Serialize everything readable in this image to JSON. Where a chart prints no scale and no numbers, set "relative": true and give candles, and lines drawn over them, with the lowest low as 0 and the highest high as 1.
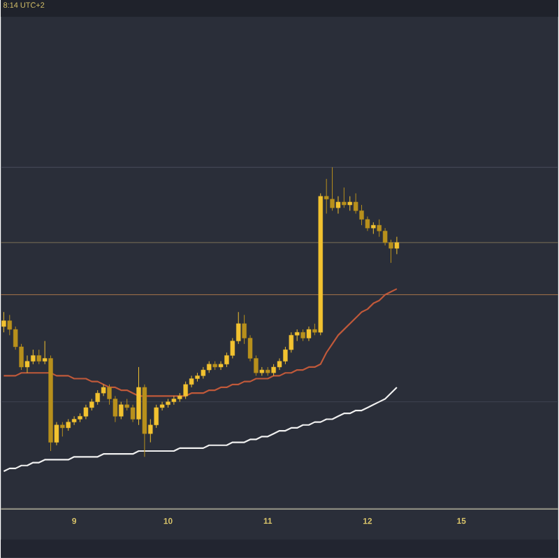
{
  "chart_data": {
    "type": "candlestick",
    "relative": true,
    "annotations": [
      "8:14 UTC+2"
    ],
    "categories": [
      null,
      null,
      null,
      null,
      null,
      null,
      null,
      null,
      null,
      null,
      null,
      null,
      "9",
      null,
      null,
      null,
      null,
      null,
      null,
      null,
      null,
      null,
      null,
      null,
      null,
      null,
      null,
      null,
      "10",
      null,
      null,
      null,
      null,
      null,
      null,
      null,
      null,
      null,
      null,
      null,
      null,
      null,
      null,
      null,
      null,
      "11",
      null,
      null,
      null,
      null,
      null,
      null,
      null,
      null,
      null,
      null,
      null,
      null,
      null,
      null,
      null,
      null,
      "12",
      null,
      null,
      null,
      null,
      null,
      null,
      null,
      null,
      null,
      null,
      null,
      null,
      null,
      null,
      null,
      "15",
      null,
      null,
      null,
      null,
      null,
      null,
      null,
      null,
      null,
      null,
      null,
      null,
      null,
      null,
      null,
      null
    ],
    "colors": [
      "#f2c230",
      "#b8901c",
      "#b8901c",
      "#b8901c",
      "#f2c230",
      "#f2c230",
      "#b8901c",
      "#f2c230",
      "#b8901c",
      "#f2c230",
      "#b8901c",
      "#f2c230",
      "#f2c230",
      "#f2c230",
      "#f2c230",
      "#f2c230",
      "#f2c230",
      "#f2c230",
      "#b8901c",
      "#b8901c",
      "#f2c230",
      "#b8901c",
      "#b8901c",
      "#f2c230",
      "#b8901c",
      "#f2c230",
      "#f2c230",
      "#f2c230",
      "#f2c230",
      "#f2c230",
      "#f2c230",
      "#f2c230",
      "#f2c230",
      "#f2c230",
      "#f2c230",
      "#f2c230",
      "#b8901c",
      "#f2c230",
      "#f2c230",
      "#f2c230",
      "#f2c230",
      "#b8901c",
      "#b8901c",
      "#b8901c",
      "#f2c230",
      "#b8901c",
      "#f2c230",
      "#f2c230",
      "#f2c230",
      "#f2c230",
      "#f2c230",
      "#b8901c",
      "#f2c230",
      "#b8901c",
      "#f2c230",
      "#b8901c",
      "#b8901c",
      "#f2c230",
      "#b8901c",
      "#f2c230",
      "#b8901c",
      "#b8901c",
      "#b8901c",
      "#f2c230",
      "#b8901c",
      "#b8901c",
      "#b8901c",
      "#f2c230",
      null,
      null,
      null,
      null,
      null,
      null,
      null,
      null,
      null,
      null,
      null,
      null,
      null,
      null,
      null,
      null,
      null,
      null,
      null,
      null,
      null,
      null,
      null,
      null,
      null,
      null,
      null
    ],
    "ohlc": [
      [
        0.45,
        0.5,
        0.43,
        0.47
      ],
      [
        0.47,
        0.49,
        0.42,
        0.44
      ],
      [
        0.44,
        0.45,
        0.37,
        0.38
      ],
      [
        0.38,
        0.39,
        0.3,
        0.31
      ],
      [
        0.31,
        0.35,
        0.29,
        0.33
      ],
      [
        0.33,
        0.37,
        0.32,
        0.35
      ],
      [
        0.35,
        0.37,
        0.32,
        0.33
      ],
      [
        0.33,
        0.4,
        0.32,
        0.34
      ],
      [
        0.34,
        0.35,
        0.02,
        0.05
      ],
      [
        0.05,
        0.12,
        0.04,
        0.11
      ],
      [
        0.11,
        0.12,
        0.07,
        0.1
      ],
      [
        0.1,
        0.13,
        0.09,
        0.12
      ],
      [
        0.12,
        0.14,
        0.11,
        0.13
      ],
      [
        0.13,
        0.15,
        0.12,
        0.14
      ],
      [
        0.14,
        0.18,
        0.13,
        0.17
      ],
      [
        0.17,
        0.2,
        0.16,
        0.19
      ],
      [
        0.19,
        0.23,
        0.18,
        0.22
      ],
      [
        0.22,
        0.25,
        0.21,
        0.24
      ],
      [
        0.24,
        0.25,
        0.18,
        0.2
      ],
      [
        0.2,
        0.21,
        0.12,
        0.14
      ],
      [
        0.14,
        0.19,
        0.13,
        0.18
      ],
      [
        0.18,
        0.2,
        0.16,
        0.17
      ],
      [
        0.17,
        0.18,
        0.12,
        0.13
      ],
      [
        0.13,
        0.31,
        0.11,
        0.24
      ],
      [
        0.24,
        0.25,
        0.0,
        0.08
      ],
      [
        0.08,
        0.13,
        0.05,
        0.11
      ],
      [
        0.11,
        0.18,
        0.1,
        0.17
      ],
      [
        0.17,
        0.19,
        0.16,
        0.18
      ],
      [
        0.18,
        0.2,
        0.17,
        0.19
      ],
      [
        0.19,
        0.21,
        0.18,
        0.2
      ],
      [
        0.2,
        0.22,
        0.19,
        0.21
      ],
      [
        0.21,
        0.26,
        0.2,
        0.25
      ],
      [
        0.25,
        0.28,
        0.24,
        0.27
      ],
      [
        0.27,
        0.29,
        0.26,
        0.28
      ],
      [
        0.28,
        0.31,
        0.27,
        0.3
      ],
      [
        0.3,
        0.33,
        0.29,
        0.32
      ],
      [
        0.32,
        0.33,
        0.3,
        0.31
      ],
      [
        0.31,
        0.33,
        0.3,
        0.32
      ],
      [
        0.32,
        0.36,
        0.31,
        0.35
      ],
      [
        0.35,
        0.41,
        0.34,
        0.4
      ],
      [
        0.4,
        0.5,
        0.39,
        0.46
      ],
      [
        0.46,
        0.49,
        0.39,
        0.41
      ],
      [
        0.41,
        0.42,
        0.33,
        0.34
      ],
      [
        0.34,
        0.35,
        0.28,
        0.29
      ],
      [
        0.29,
        0.31,
        0.28,
        0.3
      ],
      [
        0.3,
        0.31,
        0.28,
        0.29
      ],
      [
        0.29,
        0.32,
        0.28,
        0.31
      ],
      [
        0.31,
        0.34,
        0.3,
        0.33
      ],
      [
        0.33,
        0.38,
        0.32,
        0.37
      ],
      [
        0.37,
        0.43,
        0.36,
        0.42
      ],
      [
        0.42,
        0.44,
        0.4,
        0.43
      ],
      [
        0.43,
        0.44,
        0.4,
        0.41
      ],
      [
        0.41,
        0.45,
        0.4,
        0.44
      ],
      [
        0.44,
        0.46,
        0.42,
        0.43
      ],
      [
        0.43,
        0.91,
        0.42,
        0.9
      ],
      [
        0.9,
        0.96,
        0.84,
        0.89
      ],
      [
        0.89,
        1.0,
        0.85,
        0.86
      ],
      [
        0.86,
        0.9,
        0.84,
        0.88
      ],
      [
        0.88,
        0.93,
        0.86,
        0.87
      ],
      [
        0.87,
        0.9,
        0.85,
        0.88
      ],
      [
        0.88,
        0.91,
        0.84,
        0.85
      ],
      [
        0.85,
        0.87,
        0.8,
        0.82
      ],
      [
        0.82,
        0.83,
        0.78,
        0.79
      ],
      [
        0.79,
        0.81,
        0.77,
        0.8
      ],
      [
        0.8,
        0.82,
        0.76,
        0.78
      ],
      [
        0.78,
        0.79,
        0.73,
        0.74
      ],
      [
        0.74,
        0.75,
        0.67,
        0.72
      ],
      [
        0.72,
        0.76,
        0.7,
        0.74
      ],
      null,
      null,
      null,
      null,
      null,
      null,
      null,
      null,
      null,
      null,
      null,
      null,
      null,
      null,
      null,
      null,
      null,
      null,
      null,
      null,
      null,
      null,
      null,
      null,
      null,
      null,
      null
    ],
    "series": [
      {
        "type": "line",
        "color": "#c0593a",
        "values": [
          0.28,
          0.28,
          0.28,
          0.29,
          0.29,
          0.29,
          0.29,
          0.29,
          0.29,
          0.28,
          0.28,
          0.28,
          0.27,
          0.27,
          0.27,
          0.26,
          0.26,
          0.25,
          0.24,
          0.24,
          0.23,
          0.23,
          0.22,
          0.21,
          0.21,
          0.21,
          0.21,
          0.21,
          0.21,
          0.21,
          0.21,
          0.21,
          0.22,
          0.22,
          0.22,
          0.23,
          0.23,
          0.24,
          0.24,
          0.25,
          0.25,
          0.26,
          0.26,
          0.27,
          0.27,
          0.27,
          0.28,
          0.28,
          0.29,
          0.29,
          0.3,
          0.3,
          0.31,
          0.31,
          0.32,
          0.36,
          0.39,
          0.42,
          0.44,
          0.46,
          0.48,
          0.5,
          0.51,
          0.53,
          0.54,
          0.56,
          0.57,
          0.58,
          null,
          null,
          null,
          null,
          null,
          null,
          null,
          null,
          null,
          null,
          null,
          null,
          null,
          null,
          null,
          null,
          null,
          null,
          null,
          null,
          null,
          null,
          null,
          null,
          null,
          null,
          null
        ]
      },
      {
        "type": "line",
        "color": "#f0f0f0",
        "values": [
          -0.05,
          -0.04,
          -0.04,
          -0.03,
          -0.03,
          -0.02,
          -0.02,
          -0.01,
          -0.01,
          -0.01,
          -0.01,
          -0.01,
          0.0,
          0.0,
          0.0,
          0.0,
          0.0,
          0.01,
          0.01,
          0.01,
          0.01,
          0.01,
          0.01,
          0.02,
          0.02,
          0.02,
          0.02,
          0.02,
          0.02,
          0.02,
          0.03,
          0.03,
          0.03,
          0.03,
          0.03,
          0.04,
          0.04,
          0.04,
          0.04,
          0.05,
          0.05,
          0.05,
          0.06,
          0.06,
          0.07,
          0.07,
          0.08,
          0.09,
          0.09,
          0.1,
          0.1,
          0.11,
          0.11,
          0.12,
          0.12,
          0.13,
          0.13,
          0.14,
          0.15,
          0.15,
          0.16,
          0.16,
          0.17,
          0.18,
          0.19,
          0.2,
          0.22,
          0.24,
          null,
          null,
          null,
          null,
          null,
          null,
          null,
          null,
          null,
          null,
          null,
          null,
          null,
          null,
          null,
          null,
          null,
          null,
          null,
          null,
          null,
          null,
          null,
          null,
          null,
          null,
          null
        ]
      }
    ],
    "ref_lines": [
      {
        "axis": "y",
        "value": 1.0,
        "color": "#4a4e5c"
      },
      {
        "axis": "y",
        "value": 0.74,
        "color": "#7d7158"
      },
      {
        "axis": "y",
        "value": 0.56,
        "color": "#a8764c"
      },
      {
        "axis": "y",
        "value": 0.19,
        "color": "#3f4352"
      }
    ]
  }
}
